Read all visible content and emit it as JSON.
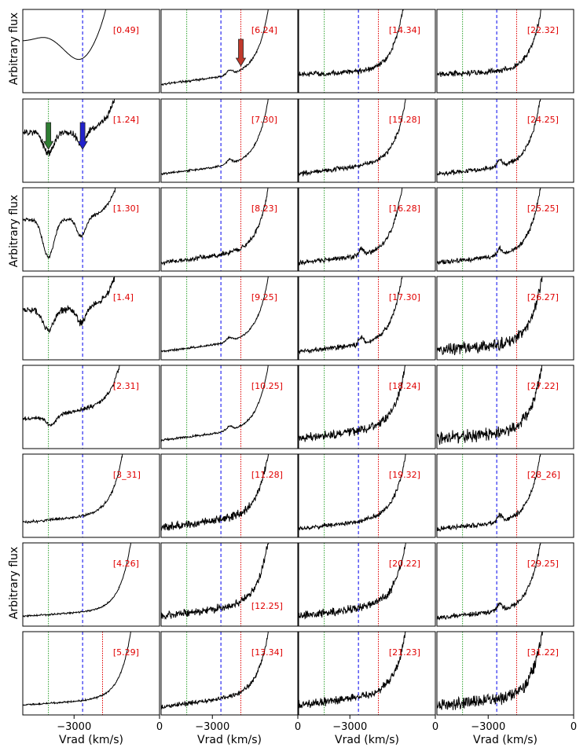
{
  "chart_data": {
    "type": "line",
    "grid": "4 columns x 8 rows of small spectrum panels",
    "ylabel": "Arbitrary flux",
    "xlabel": "Vrad (km/s)",
    "xlim": [
      -4800,
      0
    ],
    "xticks": [
      {
        "value": -3000,
        "label": "−3000"
      },
      {
        "value": 0,
        "label": "0"
      }
    ],
    "yticks": "none",
    "reference_lines": [
      {
        "velocity": -3900,
        "color": "#2ca02c",
        "style": "dotted"
      },
      {
        "velocity": -2700,
        "color": "#0000ee",
        "style": "dashed"
      },
      {
        "velocity": -2000,
        "color": "#e00000",
        "style": "dotted"
      }
    ],
    "markers": [
      {
        "panel": "[6.24]",
        "velocity": -2000,
        "color": "#b22222",
        "shape": "down-arrow"
      },
      {
        "panel": "[1.24]",
        "velocity": -3900,
        "color": "#2e7d32",
        "shape": "down-arrow"
      },
      {
        "panel": "[1.24]",
        "velocity": -2700,
        "color": "#1f1fb4",
        "shape": "down-arrow"
      }
    ],
    "panels": [
      {
        "label": "[0.49]",
        "col": 0,
        "row": 0,
        "lines": [
          "blue"
        ],
        "curve": "wide_dip_smooth"
      },
      {
        "label": "[1.24]",
        "col": 0,
        "row": 1,
        "lines": [
          "green",
          "blue"
        ],
        "curve": "double_dip_noisy"
      },
      {
        "label": "[1.30]",
        "col": 0,
        "row": 2,
        "lines": [
          "green",
          "blue"
        ],
        "curve": "double_dip_deep"
      },
      {
        "label": "[1.4]",
        "col": 0,
        "row": 3,
        "lines": [
          "green",
          "blue"
        ],
        "curve": "double_dip_noisy"
      },
      {
        "label": "[2.31]",
        "col": 0,
        "row": 4,
        "lines": [
          "green",
          "blue"
        ],
        "curve": "single_dip_rise"
      },
      {
        "label": "[3_31]",
        "col": 0,
        "row": 5,
        "lines": [
          "green",
          "blue"
        ],
        "curve": "shallow_rise"
      },
      {
        "label": "[4.26]",
        "col": 0,
        "row": 6,
        "lines": [
          "green",
          "blue"
        ],
        "curve": "flat_rise"
      },
      {
        "label": "[5.29]",
        "col": 0,
        "row": 7,
        "lines": [
          "green",
          "blue",
          "red"
        ],
        "curve": "flat_rise"
      },
      {
        "label": "[6.24]",
        "col": 1,
        "row": 0,
        "lines": [
          "green",
          "blue",
          "red"
        ],
        "curve": "flat_rise_bump"
      },
      {
        "label": "[7.30]",
        "col": 1,
        "row": 1,
        "lines": [
          "green",
          "blue",
          "red"
        ],
        "curve": "flat_rise_bump"
      },
      {
        "label": "[8.23]",
        "col": 1,
        "row": 2,
        "lines": [
          "green",
          "blue",
          "red"
        ],
        "curve": "noisy_rise"
      },
      {
        "label": "[9.25]",
        "col": 1,
        "row": 3,
        "lines": [
          "green",
          "blue",
          "red"
        ],
        "curve": "flat_rise_bump"
      },
      {
        "label": "[10.25]",
        "col": 1,
        "row": 4,
        "lines": [
          "green",
          "blue",
          "red"
        ],
        "curve": "flat_rise_bump"
      },
      {
        "label": "[11.28]",
        "col": 1,
        "row": 5,
        "lines": [
          "green",
          "blue",
          "red"
        ],
        "curve": "very_noisy_rise"
      },
      {
        "label": "[12.25]",
        "col": 1,
        "row": 6,
        "lines": [
          "green",
          "blue",
          "red"
        ],
        "curve": "very_noisy_rise"
      },
      {
        "label": "[13.34]",
        "col": 1,
        "row": 7,
        "lines": [
          "green",
          "blue",
          "red"
        ],
        "curve": "noisy_rise"
      },
      {
        "label": "[14.34]",
        "col": 2,
        "row": 0,
        "lines": [
          "green",
          "blue",
          "red"
        ],
        "curve": "noisy_flat_rise"
      },
      {
        "label": "[15.28]",
        "col": 2,
        "row": 1,
        "lines": [
          "green",
          "blue",
          "red"
        ],
        "curve": "noisy_rise"
      },
      {
        "label": "[16.28]",
        "col": 2,
        "row": 2,
        "lines": [
          "green",
          "blue",
          "red"
        ],
        "curve": "noisy_rise_peak"
      },
      {
        "label": "[17.30]",
        "col": 2,
        "row": 3,
        "lines": [
          "green",
          "blue",
          "red"
        ],
        "curve": "noisy_rise_peak"
      },
      {
        "label": "[18.24]",
        "col": 2,
        "row": 4,
        "lines": [
          "green",
          "blue",
          "red"
        ],
        "curve": "very_noisy_rise"
      },
      {
        "label": "[19.32]",
        "col": 2,
        "row": 5,
        "lines": [
          "green",
          "blue",
          "red"
        ],
        "curve": "noisy_rise"
      },
      {
        "label": "[20.22]",
        "col": 2,
        "row": 6,
        "lines": [
          "green",
          "blue",
          "red"
        ],
        "curve": "very_noisy_rise"
      },
      {
        "label": "[21.23]",
        "col": 2,
        "row": 7,
        "lines": [
          "green",
          "blue",
          "red"
        ],
        "curve": "very_noisy_rise"
      },
      {
        "label": "[22.32]",
        "col": 3,
        "row": 0,
        "lines": [
          "green",
          "blue",
          "red"
        ],
        "curve": "noisy_flat_rise"
      },
      {
        "label": "[24.25]",
        "col": 3,
        "row": 1,
        "lines": [
          "green",
          "blue",
          "red"
        ],
        "curve": "noisy_rise_peak"
      },
      {
        "label": "[25.25]",
        "col": 3,
        "row": 2,
        "lines": [
          "green",
          "blue",
          "red"
        ],
        "curve": "noisy_rise_peak"
      },
      {
        "label": "[26.27]",
        "col": 3,
        "row": 3,
        "lines": [
          "green",
          "blue",
          "red"
        ],
        "curve": "extremely_noisy_rise"
      },
      {
        "label": "[27.22]",
        "col": 3,
        "row": 4,
        "lines": [
          "green",
          "blue",
          "red"
        ],
        "curve": "extremely_noisy_rise"
      },
      {
        "label": "[28_26]",
        "col": 3,
        "row": 5,
        "lines": [
          "green",
          "blue",
          "red"
        ],
        "curve": "noisy_rise_peak"
      },
      {
        "label": "[29.25]",
        "col": 3,
        "row": 6,
        "lines": [
          "green",
          "blue",
          "red"
        ],
        "curve": "noisy_rise_peak"
      },
      {
        "label": "[31.22]",
        "col": 3,
        "row": 7,
        "lines": [
          "green",
          "blue",
          "red"
        ],
        "curve": "extremely_noisy_rise"
      }
    ]
  }
}
